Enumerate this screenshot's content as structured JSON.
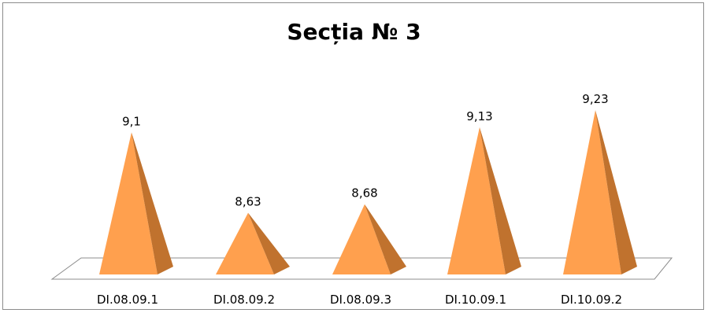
{
  "chart_data": {
    "type": "bar",
    "title": "Secția № 3",
    "categories": [
      "DI.08.09.1",
      "DI.08.09.2",
      "DI.08.09.3",
      "DI.10.09.1",
      "DI.10.09.2"
    ],
    "series": [
      {
        "values": [
          9.1,
          8.63,
          8.68,
          9.13,
          9.23
        ],
        "labels": [
          "9,1",
          "8,63",
          "8,68",
          "9,13",
          "9,23"
        ]
      }
    ],
    "bar_shape": "pyramid",
    "ylim": [
      8.27,
      9.23
    ],
    "grid": false,
    "legend": false,
    "colors": {
      "front": "#FFA04E",
      "side": "#C0722E",
      "floor_edge": "#8c8c8c"
    }
  }
}
